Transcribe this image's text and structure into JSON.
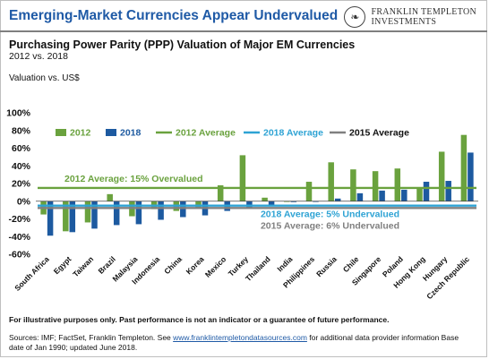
{
  "header": {
    "title": "Emerging-Market Currencies Appear Undervalued",
    "logo_line1": "FRANKLIN TEMPLETON",
    "logo_line2": "INVESTMENTS",
    "logo_mark": "❧"
  },
  "subtitle": "Purchasing Power Parity (PPP) Valuation of Major EM Currencies",
  "subtitle2": "2012 vs. 2018",
  "valuation_label": "Valuation vs. US$",
  "footer": {
    "note": "For illustrative purposes only. Past performance is not an indicator or a guarantee of future performance.",
    "sources_prefix": "Sources: IMF; FactSet, Franklin Templeton. See ",
    "sources_link": "www.franklintempletondatasources.com",
    "sources_suffix": " for additional data provider information Base date of Jan 1990; updated June 2018."
  },
  "chart_data": {
    "type": "bar",
    "categories": [
      "South Africa",
      "Egypt",
      "Taiwan",
      "Brazil",
      "Malaysia",
      "Indonesia",
      "China",
      "Korea",
      "Mexico",
      "Turkey",
      "Thailand",
      "India",
      "Philippines",
      "Russia",
      "Chile",
      "Singapore",
      "Poland",
      "Hong Kong",
      "Hungary",
      "Czech Republic"
    ],
    "series": [
      {
        "name": "2012",
        "color": "#6aa23e",
        "values": [
          -15,
          -34,
          -24,
          8,
          -17,
          -9,
          -11,
          -8,
          18,
          52,
          4,
          0,
          22,
          44,
          36,
          34,
          37,
          15,
          56,
          75
        ]
      },
      {
        "name": "2018",
        "color": "#1d5aa0",
        "values": [
          -39,
          -35,
          -31,
          -27,
          -26,
          -21,
          -18,
          -16,
          -11,
          -7,
          -5,
          -1,
          0,
          3,
          9,
          12,
          13,
          22,
          23,
          55
        ]
      }
    ],
    "reference_lines": [
      {
        "name": "2012 Average",
        "value": 15,
        "color": "#6aa23e",
        "label": "2012 Average: 15% Overvalued"
      },
      {
        "name": "2018 Average",
        "value": -5,
        "color": "#2ea3d4",
        "label": "2018 Average: 5% Undervalued"
      },
      {
        "name": "2015 Average",
        "value": -6,
        "color": "#808080",
        "label": "2015 Average: 6% Undervalued"
      }
    ],
    "ylim": [
      -60,
      100
    ],
    "yticks": [
      -60,
      -40,
      -20,
      0,
      20,
      40,
      60,
      80,
      100
    ],
    "ytick_format": "percent",
    "legend_position": "top",
    "grid": false
  }
}
